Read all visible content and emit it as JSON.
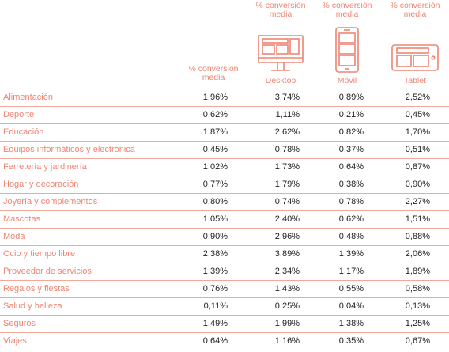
{
  "header": {
    "col_overall": {
      "line1": "% conversión",
      "line2": "media"
    },
    "col_desktop": {
      "line1": "% conversión",
      "line2": "media",
      "device": "Desktop",
      "icon": "desktop-monitor-icon"
    },
    "col_movil": {
      "line1": "% conversión",
      "line2": "media",
      "device": "Móvil",
      "icon": "mobile-phone-icon"
    },
    "col_tablet": {
      "line1": "% conversión",
      "line2": "media",
      "device": "Tablet",
      "icon": "tablet-icon"
    }
  },
  "colors": {
    "accent": "#ef8473",
    "text": "#222222",
    "rule": "#f2a79b"
  },
  "rows": [
    {
      "label": "Alimentación",
      "overall": "1,96%",
      "desktop": "3,74%",
      "movil": "0,89%",
      "tablet": "2,52%"
    },
    {
      "label": "Deporte",
      "overall": "0,62%",
      "desktop": "1,11%",
      "movil": "0,21%",
      "tablet": "0,45%"
    },
    {
      "label": "Educación",
      "overall": "1,87%",
      "desktop": "2,62%",
      "movil": "0,82%",
      "tablet": "1,70%"
    },
    {
      "label": "Equipos informáticos y electrónica",
      "overall": "0,45%",
      "desktop": "0,78%",
      "movil": "0,37%",
      "tablet": "0,51%"
    },
    {
      "label": "Ferretería y jardinería",
      "overall": "1,02%",
      "desktop": "1,73%",
      "movil": "0,64%",
      "tablet": "0,87%"
    },
    {
      "label": "Hogar y decoración",
      "overall": "0,77%",
      "desktop": "1,79%",
      "movil": "0,38%",
      "tablet": "0,90%"
    },
    {
      "label": "Joyería y complementos",
      "overall": "0,80%",
      "desktop": "0,74%",
      "movil": "0,78%",
      "tablet": "2,27%"
    },
    {
      "label": "Mascotas",
      "overall": "1,05%",
      "desktop": "2,40%",
      "movil": "0,62%",
      "tablet": "1,51%"
    },
    {
      "label": "Moda",
      "overall": "0,90%",
      "desktop": "2,96%",
      "movil": "0,48%",
      "tablet": "0,88%"
    },
    {
      "label": "Ocio y tiempo libre",
      "overall": "2,38%",
      "desktop": "3,89%",
      "movil": "1,39%",
      "tablet": "2,06%"
    },
    {
      "label": "Proveedor de servicios",
      "overall": "1,39%",
      "desktop": "2,34%",
      "movil": "1,17%",
      "tablet": "1,89%"
    },
    {
      "label": "Regalos y fiestas",
      "overall": "0,76%",
      "desktop": "1,43%",
      "movil": "0,55%",
      "tablet": "0,58%"
    },
    {
      "label": "Salud y belleza",
      "overall": "0,11%",
      "desktop": "0,25%",
      "movil": "0,04%",
      "tablet": "0,13%"
    },
    {
      "label": "Seguros",
      "overall": "1,49%",
      "desktop": "1,99%",
      "movil": "1,38%",
      "tablet": "1,25%"
    },
    {
      "label": "Viajes",
      "overall": "0,64%",
      "desktop": "1,16%",
      "movil": "0,35%",
      "tablet": "0,67%"
    }
  ]
}
